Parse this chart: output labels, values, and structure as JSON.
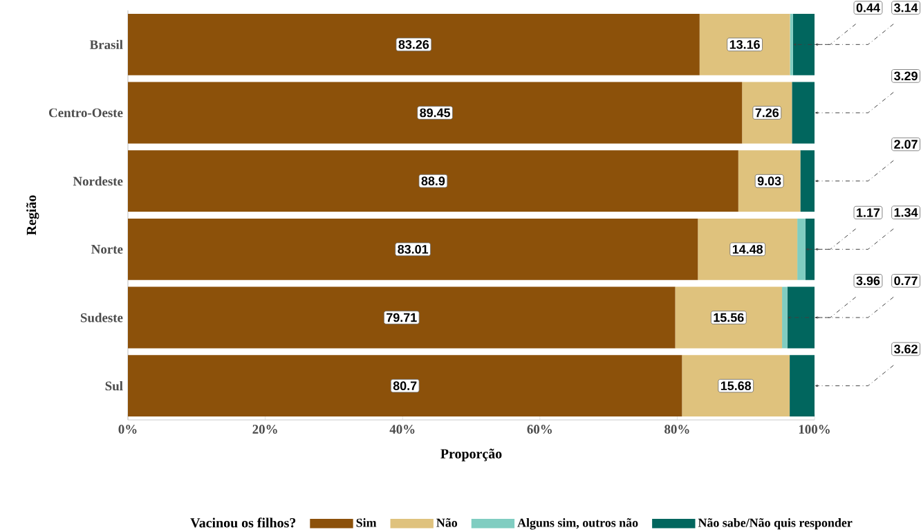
{
  "chart_data": {
    "type": "bar",
    "orientation": "horizontal",
    "stacked": true,
    "categories": [
      "Brasil",
      "Centro-Oeste",
      "Nordeste",
      "Norte",
      "Sudeste",
      "Sul"
    ],
    "series": [
      {
        "name": "Sim",
        "color": "#8c510a",
        "values": [
          83.26,
          89.45,
          88.9,
          83.01,
          79.71,
          80.7
        ],
        "value_labels": [
          "83.26",
          "89.45",
          "88.9",
          "83.01",
          "79.71",
          "80.7"
        ]
      },
      {
        "name": "Não",
        "color": "#dfc27d",
        "values": [
          13.16,
          7.26,
          9.03,
          14.48,
          15.56,
          15.68
        ],
        "value_labels": [
          "13.16",
          "7.26",
          "9.03",
          "14.48",
          "15.56",
          "15.68"
        ]
      },
      {
        "name": "Alguns sim, outros não",
        "color": "#80cdc1",
        "values": [
          0.44,
          null,
          null,
          1.17,
          0.77,
          null
        ]
      },
      {
        "name": "Não sabe/Não quis responder",
        "color": "#01665e",
        "values": [
          3.14,
          3.29,
          2.07,
          1.34,
          3.96,
          3.62
        ]
      }
    ],
    "annotations": [
      {
        "text": "0.44",
        "x": 96.86,
        "y": "Brasil"
      },
      {
        "text": "3.14",
        "x": 100,
        "y": "Brasil"
      },
      {
        "text": "3.29",
        "x": 100,
        "y": "Centro-Oeste"
      },
      {
        "text": "2.07",
        "x": 100,
        "y": "Nordeste"
      },
      {
        "text": "1.17",
        "x": 98.66,
        "y": "Norte"
      },
      {
        "text": "1.34",
        "x": 100,
        "y": "Norte"
      },
      {
        "text": "3.96",
        "x": 100,
        "y": "Sudeste"
      },
      {
        "text": "0.77",
        "x": 96.04,
        "y": "Sudeste"
      },
      {
        "text": "3.62",
        "x": 100,
        "y": "Sul"
      }
    ],
    "xlim": [
      0,
      100
    ],
    "xticks": [
      {
        "value": 0,
        "label": "0%"
      },
      {
        "value": 20,
        "label": "20%"
      },
      {
        "value": 40,
        "label": "40%"
      },
      {
        "value": 60,
        "label": "60%"
      },
      {
        "value": 80,
        "label": "80%"
      },
      {
        "value": 100,
        "label": "100%"
      }
    ],
    "xlabel": "Proporção",
    "ylabel": "Região",
    "legend_title": "Vacinou os filhos?",
    "legend": "bottom",
    "grid": false
  }
}
